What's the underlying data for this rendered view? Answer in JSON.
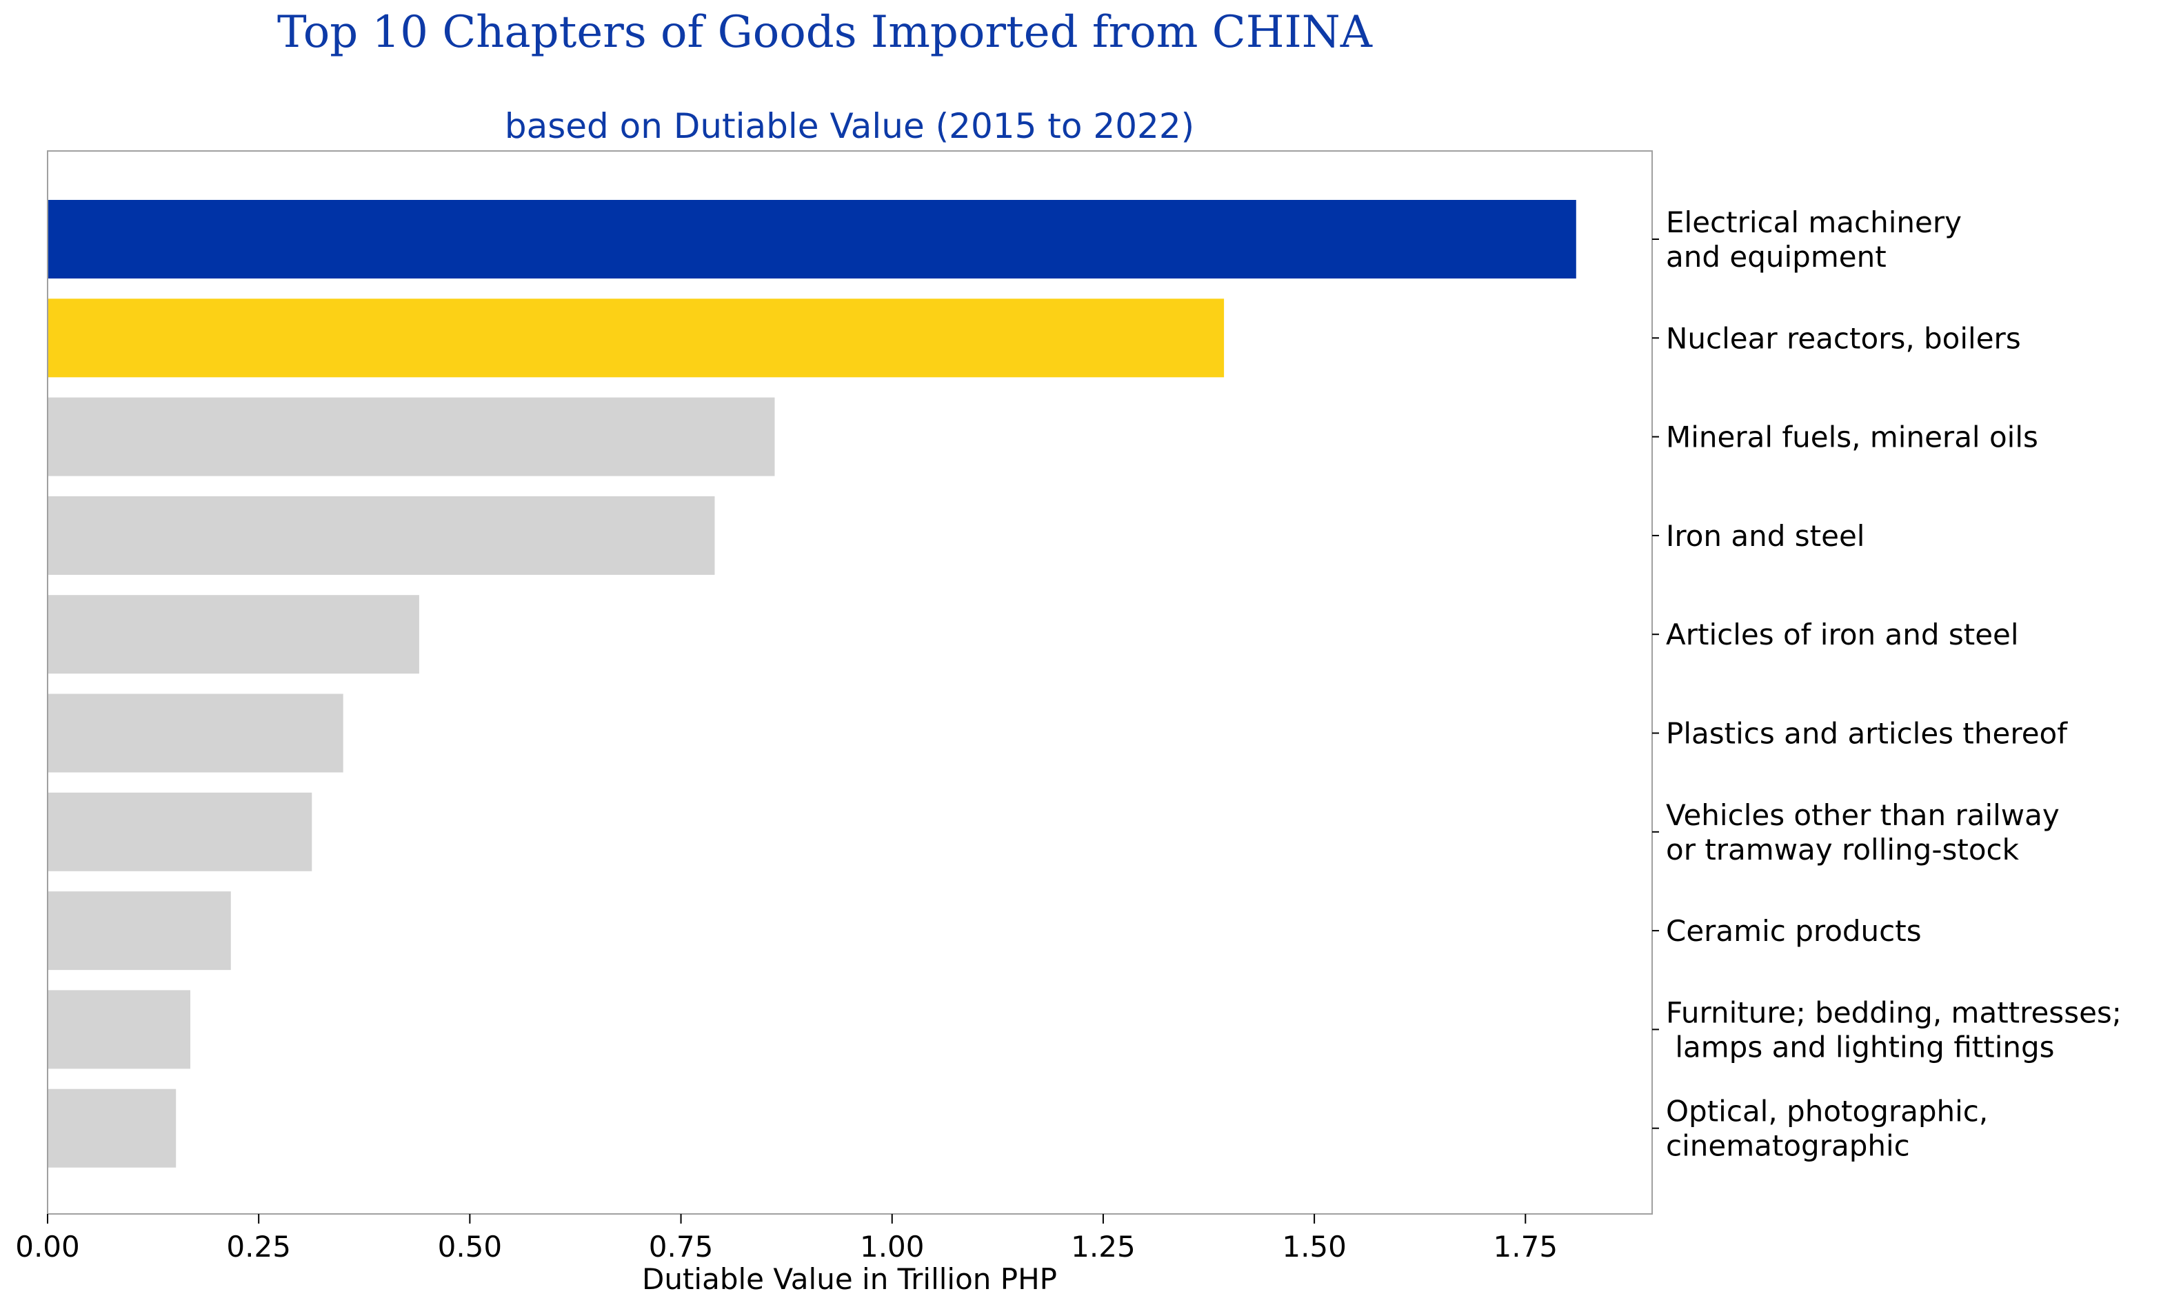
{
  "chart_data": {
    "type": "bar",
    "orientation": "horizontal",
    "title": "Top 10 Chapters of Goods Imported from CHINA",
    "subtitle": "based on Dutiable Value (2015 to 2022)",
    "xlabel": "Dutiable Value in Trillion PHP",
    "ylabel": "",
    "xlim": [
      0,
      1.9
    ],
    "xticks": [
      0,
      0.25,
      0.5,
      0.75,
      1.0,
      1.25,
      1.5,
      1.75
    ],
    "xtick_labels": [
      "0.00",
      "0.25",
      "0.50",
      "0.75",
      "1.00",
      "1.25",
      "1.50",
      "1.75"
    ],
    "category_axis_position": "right",
    "grid": false,
    "legend": "none",
    "categories": [
      [
        "Electrical machinery",
        "and equipment"
      ],
      [
        "Nuclear reactors, boilers"
      ],
      [
        "Mineral fuels, mineral oils"
      ],
      [
        "Iron and steel"
      ],
      [
        "Articles of iron and steel"
      ],
      [
        "Plastics and articles thereof"
      ],
      [
        "Vehicles other than railway",
        "or tramway rolling-stock"
      ],
      [
        "Ceramic products"
      ],
      [
        "Furniture; bedding, mattresses;",
        " lamps and lighting fittings"
      ],
      [
        "Optical, photographic,",
        "cinematographic"
      ]
    ],
    "values": [
      1.81,
      1.393,
      0.861,
      0.79,
      0.44,
      0.35,
      0.313,
      0.217,
      0.169,
      0.152
    ],
    "colors": [
      "#0033a6",
      "#fcd116",
      "#d3d3d3",
      "#d3d3d3",
      "#d3d3d3",
      "#d3d3d3",
      "#d3d3d3",
      "#d3d3d3",
      "#d3d3d3",
      "#d3d3d3"
    ],
    "title_color": "#0d3aa7",
    "axis_color": "#a0a0a0"
  }
}
